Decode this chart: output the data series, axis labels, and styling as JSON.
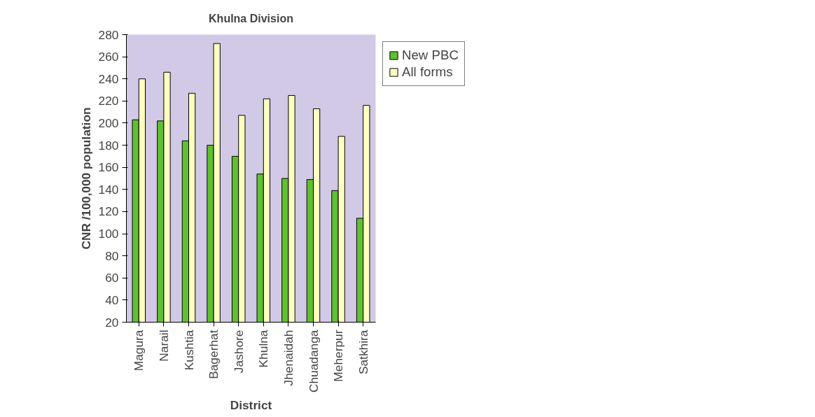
{
  "chart_data": {
    "type": "bar",
    "title": "Khulna Division",
    "xlabel": "District",
    "ylabel": "CNR /100,000 population",
    "categories": [
      "Magura",
      "Narail",
      "Kushtia",
      "Bagerhat",
      "Jashore",
      "Khulna",
      "Jhenaidah",
      "Chuadanga",
      "Meherpur",
      "Satkhira"
    ],
    "series": [
      {
        "name": "New PBC",
        "color": "#5fc030",
        "values": [
          203,
          202,
          184,
          180,
          170,
          154,
          150,
          149,
          139,
          114
        ]
      },
      {
        "name": "All forms",
        "color": "#ffffc0",
        "values": [
          240,
          246,
          227,
          272,
          207,
          222,
          225,
          213,
          188,
          216
        ]
      }
    ],
    "ylim": [
      20,
      280
    ],
    "yticks": [
      20,
      40,
      60,
      80,
      100,
      120,
      140,
      160,
      180,
      200,
      220,
      240,
      260,
      280
    ],
    "grid": false,
    "legend": "top right"
  }
}
